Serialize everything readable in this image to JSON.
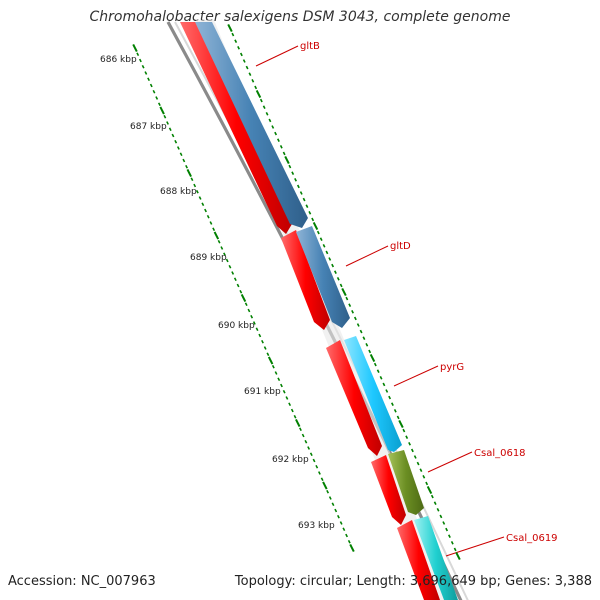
{
  "title": "Chromohalobacter salexigens DSM 3043, complete genome",
  "accession": "Accession: NC_007963",
  "summary": "Topology: circular; Length: 3,696,649 bp; Genes: 3,388",
  "tick_labels": [
    "686 kbp",
    "687 kbp",
    "688 kbp",
    "689 kbp",
    "690 kbp",
    "691 kbp",
    "692 kbp",
    "693 kbp"
  ],
  "gene_labels": [
    "gltB",
    "gltD",
    "pyrG",
    "Csal_0618",
    "Csal_0619"
  ],
  "colors": {
    "forward_cds": "#ff0000",
    "gltB": "#4682b4",
    "gltD": "#4682b4",
    "pyrG": "#1ec8ff",
    "Csal_0618": "#6b8e23",
    "Csal_0619": "#20d0d0",
    "gene_label": "#cc0000",
    "tick": "#008000",
    "backbone": "#888888"
  }
}
